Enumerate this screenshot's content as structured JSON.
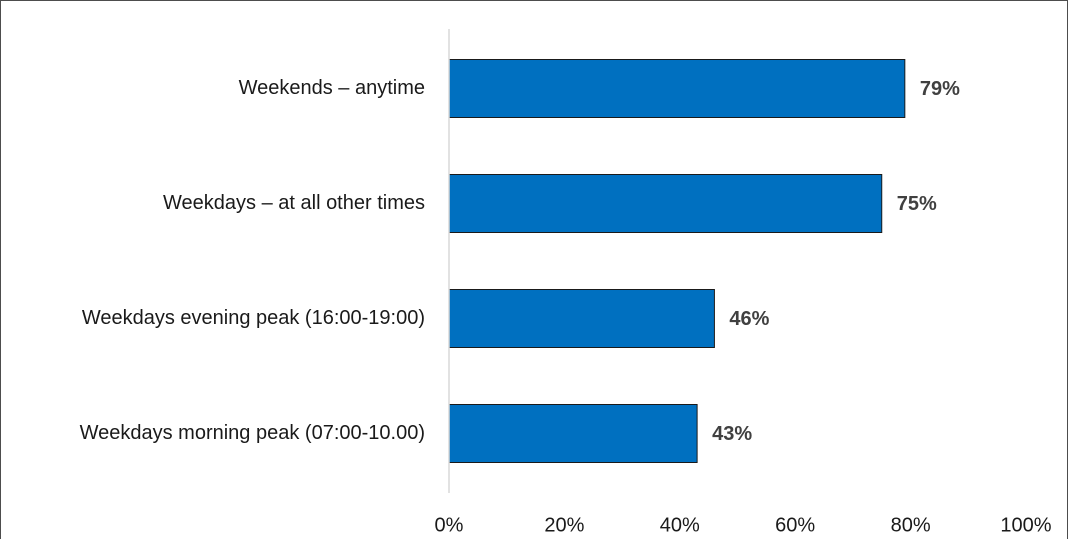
{
  "chart_data": {
    "type": "bar",
    "orientation": "horizontal",
    "categories": [
      "Weekends – anytime",
      "Weekdays – at all other times",
      "Weekdays evening peak (16:00-19:00)",
      "Weekdays morning peak (07:00-10.00)"
    ],
    "values": [
      79,
      75,
      46,
      43
    ],
    "data_labels": [
      "79%",
      "75%",
      "46%",
      "43%"
    ],
    "x_ticks": [
      "0%",
      "20%",
      "40%",
      "60%",
      "80%",
      "100%"
    ],
    "xlim": [
      0,
      100
    ],
    "grid": false,
    "legend": "none",
    "title": "",
    "xlabel": "",
    "ylabel": "",
    "colors": {
      "bar_fill": "#0070c0",
      "bar_stroke": "#1a1a1a",
      "axis_line": "#d9d9d9"
    }
  }
}
